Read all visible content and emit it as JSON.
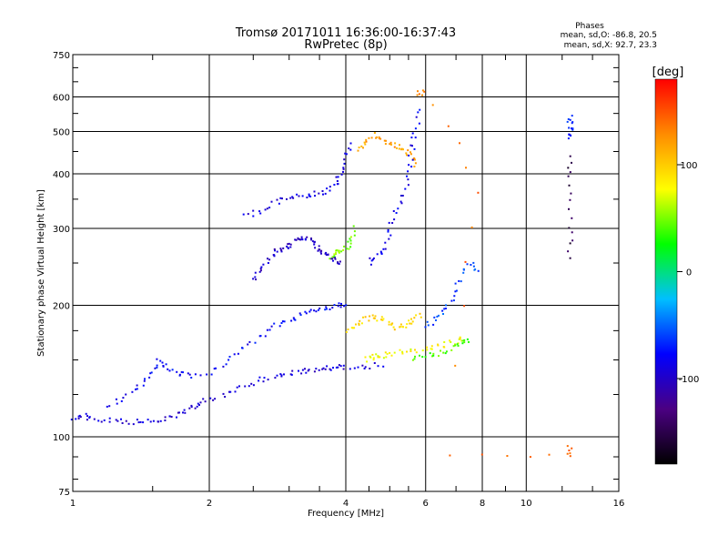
{
  "header": {
    "title": "Tromsø 20171011 16:36:00-16:37:43",
    "subtitle": "RwPretec (8p)",
    "phase_heading": "Phases",
    "phase_line_o": "mean, sd,O: -86.8, 20.5",
    "phase_line_x": "mean, sd,X: 92.7, 23.3"
  },
  "chart_data": {
    "type": "scatter",
    "title": "Tromsø 20171011 16:36:00-16:37:43",
    "subtitle": "RwPretec (8p)",
    "xlabel": "Frequency [MHz]",
    "ylabel": "Stationary phase Virtual Height [km]",
    "x_scale": "log",
    "y_scale": "log",
    "xlim": [
      1,
      16
    ],
    "ylim": [
      75,
      750
    ],
    "x_ticks": [
      {
        "value": 1,
        "label": "1"
      },
      {
        "value": 2,
        "label": "2"
      },
      {
        "value": 4,
        "label": "4"
      },
      {
        "value": 6,
        "label": "6"
      },
      {
        "value": 8,
        "label": "8"
      },
      {
        "value": 10,
        "label": "10"
      },
      {
        "value": 16,
        "label": "16"
      }
    ],
    "x_minor_ticks": [
      1.5,
      2.5,
      3,
      3.5,
      4.5,
      5,
      5.5,
      7,
      9,
      12,
      14
    ],
    "y_ticks": [
      {
        "value": 75,
        "label": "75"
      },
      {
        "value": 100,
        "label": "100"
      },
      {
        "value": 200,
        "label": "200"
      },
      {
        "value": 300,
        "label": "300"
      },
      {
        "value": 400,
        "label": "400"
      },
      {
        "value": 500,
        "label": "500"
      },
      {
        "value": 600,
        "label": "600"
      },
      {
        "value": 750,
        "label": "750"
      }
    ],
    "y_minor_ticks": [
      80,
      90,
      125,
      150,
      175,
      250,
      350,
      450,
      550,
      650,
      700
    ],
    "grid": true,
    "colorbar": {
      "label": "[deg]",
      "range": [
        -180,
        180
      ],
      "ticks": [
        {
          "value": 100,
          "label": "100"
        },
        {
          "value": 0,
          "label": "0"
        },
        {
          "value": -100,
          "label": "-100"
        }
      ],
      "colors": [
        "#000000",
        "#4b0082",
        "#0000ff",
        "#00bfff",
        "#00ff00",
        "#ffff00",
        "#ff8c00",
        "#ff0000"
      ]
    },
    "traces": [
      {
        "phase": -95,
        "points": [
          [
            1.0,
            110
          ],
          [
            1.05,
            112
          ],
          [
            1.1,
            110
          ],
          [
            1.2,
            109
          ],
          [
            1.3,
            108
          ],
          [
            1.4,
            108
          ],
          [
            1.5,
            108
          ],
          [
            1.6,
            110
          ],
          [
            1.7,
            113
          ],
          [
            1.8,
            116
          ],
          [
            1.9,
            119
          ],
          [
            2.0,
            122
          ],
          [
            2.2,
            126
          ],
          [
            2.4,
            130
          ],
          [
            2.6,
            135
          ],
          [
            2.8,
            138
          ],
          [
            3.0,
            140
          ],
          [
            3.2,
            141
          ],
          [
            3.4,
            142
          ],
          [
            3.6,
            143
          ],
          [
            3.8,
            144
          ],
          [
            4.0,
            145
          ],
          [
            4.4,
            145
          ],
          [
            4.8,
            146
          ]
        ]
      },
      {
        "phase": -80,
        "points": [
          [
            1.2,
            118
          ],
          [
            1.3,
            122
          ],
          [
            1.4,
            130
          ],
          [
            1.5,
            138
          ],
          [
            1.55,
            150
          ],
          [
            1.6,
            145
          ],
          [
            1.7,
            140
          ],
          [
            1.8,
            138
          ],
          [
            2.0,
            140
          ],
          [
            2.2,
            148
          ],
          [
            2.4,
            160
          ],
          [
            2.6,
            170
          ],
          [
            2.8,
            180
          ],
          [
            3.0,
            185
          ],
          [
            3.2,
            190
          ],
          [
            3.4,
            195
          ],
          [
            3.6,
            198
          ],
          [
            3.8,
            200
          ],
          [
            4.0,
            202
          ]
        ]
      },
      {
        "phase": -100,
        "points": [
          [
            2.5,
            230
          ],
          [
            2.6,
            240
          ],
          [
            2.7,
            255
          ],
          [
            2.8,
            265
          ],
          [
            2.9,
            270
          ],
          [
            3.0,
            275
          ],
          [
            3.1,
            280
          ],
          [
            3.2,
            285
          ],
          [
            3.3,
            282
          ],
          [
            3.4,
            275
          ],
          [
            3.5,
            268
          ],
          [
            3.6,
            262
          ],
          [
            3.7,
            258
          ],
          [
            3.8,
            255
          ],
          [
            3.9,
            250
          ]
        ]
      },
      {
        "phase": -90,
        "points": [
          [
            2.4,
            320
          ],
          [
            2.6,
            330
          ],
          [
            2.8,
            345
          ],
          [
            3.0,
            350
          ],
          [
            3.2,
            355
          ],
          [
            3.4,
            360
          ],
          [
            3.6,
            365
          ],
          [
            3.8,
            375
          ],
          [
            3.9,
            400
          ],
          [
            4.0,
            430
          ],
          [
            4.1,
            470
          ]
        ]
      },
      {
        "phase": 95,
        "points": [
          [
            4.0,
            175
          ],
          [
            4.2,
            180
          ],
          [
            4.4,
            185
          ],
          [
            4.6,
            188
          ],
          [
            4.8,
            185
          ],
          [
            5.0,
            180
          ],
          [
            5.2,
            178
          ],
          [
            5.4,
            180
          ],
          [
            5.6,
            185
          ],
          [
            5.8,
            190
          ]
        ]
      },
      {
        "phase": 80,
        "points": [
          [
            4.4,
            150
          ],
          [
            4.6,
            152
          ],
          [
            4.8,
            153
          ],
          [
            5.0,
            155
          ],
          [
            5.4,
            157
          ],
          [
            5.8,
            158
          ],
          [
            6.2,
            160
          ],
          [
            6.6,
            162
          ],
          [
            7.0,
            165
          ],
          [
            7.3,
            168
          ]
        ]
      },
      {
        "phase": 40,
        "points": [
          [
            5.6,
            150
          ],
          [
            6.0,
            153
          ],
          [
            6.4,
            155
          ],
          [
            6.8,
            160
          ],
          [
            7.2,
            163
          ],
          [
            7.5,
            168
          ]
        ]
      },
      {
        "phase": 120,
        "points": [
          [
            4.2,
            450
          ],
          [
            4.4,
            470
          ],
          [
            4.6,
            490
          ],
          [
            4.8,
            480
          ],
          [
            5.0,
            470
          ],
          [
            5.2,
            460
          ],
          [
            5.4,
            450
          ],
          [
            5.6,
            440
          ],
          [
            5.7,
            420
          ]
        ]
      },
      {
        "phase": -85,
        "points": [
          [
            4.5,
            250
          ],
          [
            4.7,
            260
          ],
          [
            4.9,
            270
          ],
          [
            5.0,
            300
          ],
          [
            5.2,
            330
          ],
          [
            5.4,
            360
          ],
          [
            5.5,
            400
          ],
          [
            5.6,
            450
          ],
          [
            5.7,
            500
          ],
          [
            5.8,
            560
          ]
        ]
      },
      {
        "phase": -60,
        "points": [
          [
            6.0,
            180
          ],
          [
            6.3,
            185
          ],
          [
            6.6,
            195
          ],
          [
            6.9,
            210
          ],
          [
            7.2,
            230
          ],
          [
            7.5,
            250
          ],
          [
            7.8,
            240
          ]
        ]
      },
      {
        "phase": 50,
        "points": [
          [
            3.7,
            255
          ],
          [
            3.8,
            262
          ],
          [
            3.9,
            268
          ],
          [
            4.0,
            270
          ],
          [
            4.1,
            280
          ],
          [
            4.2,
            300
          ]
        ]
      },
      {
        "phase": -70,
        "points": [
          [
            12.5,
            480
          ],
          [
            12.5,
            500
          ],
          [
            12.5,
            520
          ],
          [
            12.5,
            540
          ]
        ]
      },
      {
        "phase": -150,
        "points": [
          [
            12.5,
            440
          ],
          [
            12.5,
            380
          ],
          [
            12.5,
            300
          ],
          [
            12.5,
            260
          ]
        ]
      },
      {
        "phase": 140,
        "points": [
          [
            12.5,
            95
          ],
          [
            12.5,
            90
          ],
          [
            6.8,
            90
          ],
          [
            7.8,
            360
          ],
          [
            5.9,
            620
          ],
          [
            5.8,
            610
          ]
        ]
      }
    ]
  }
}
